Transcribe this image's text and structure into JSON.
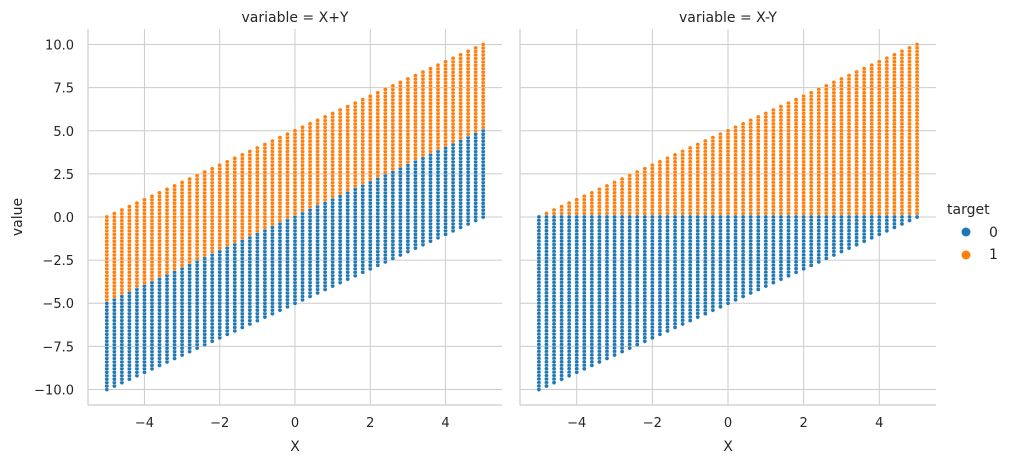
{
  "chart_data": {
    "type": "scatter",
    "facet_variable": "variable",
    "panels": [
      {
        "title": "variable = X+Y",
        "formula": "X+Y",
        "xlabel": "X",
        "ylabel": "value",
        "xlim": [
          -5.5,
          5.5
        ],
        "ylim": [
          -10.9,
          10.9
        ],
        "xticks": [
          -4,
          -2,
          0,
          2,
          4
        ],
        "yticks": [
          -10.0,
          -7.5,
          -5.0,
          -2.5,
          0.0,
          2.5,
          5.0,
          7.5,
          10.0
        ],
        "grid": true
      },
      {
        "title": "variable = X-Y",
        "formula": "X-Y",
        "xlabel": "X",
        "ylabel": "",
        "xlim": [
          -5.5,
          5.5
        ],
        "ylim": [
          -10.9,
          10.9
        ],
        "xticks": [
          -4,
          -2,
          0,
          2,
          4
        ],
        "yticks": [
          -10.0,
          -7.5,
          -5.0,
          -2.5,
          0.0,
          2.5,
          5.0,
          7.5,
          10.0
        ],
        "grid": true
      }
    ],
    "x_range": [
      -5,
      5
    ],
    "y_range": [
      -5,
      5
    ],
    "grid_points": 51,
    "target_rule": "target = 1 when Y > 0 for X+Y; target = 1 when Y < X for X-Y",
    "series": [
      {
        "name": "0",
        "color": "#1f77b4"
      },
      {
        "name": "1",
        "color": "#ff7f0e"
      }
    ],
    "legend": {
      "title": "target",
      "placement": "right"
    }
  }
}
